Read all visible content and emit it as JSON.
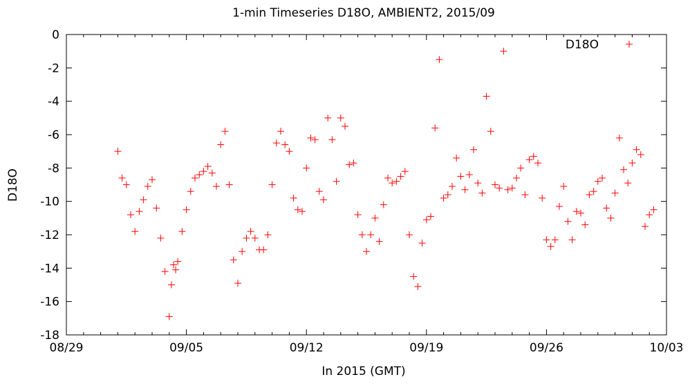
{
  "chart_data": {
    "type": "scatter",
    "title": "1-min Timeseries D18O, AMBIENT2, 2015/09",
    "xlabel": "In 2015 (GMT)",
    "ylabel": "D18O",
    "x_unit": "days",
    "xlim": [
      "2015-08-29",
      "2015-10-03"
    ],
    "ylim": [
      -18,
      0
    ],
    "x_ticks": [
      "08/29",
      "09/05",
      "09/12",
      "09/19",
      "09/26",
      "10/03"
    ],
    "y_ticks": [
      "0",
      "-2",
      "-4",
      "-6",
      "-8",
      "-10",
      "-12",
      "-14",
      "-16",
      "-18"
    ],
    "grid": false,
    "legend_position": "top-right",
    "marker": "plus",
    "series": [
      {
        "name": "D18O",
        "color": "#ff0000",
        "x": [
          "2015-09-01 00:00",
          "2015-09-01 06:00",
          "2015-09-01 12:00",
          "2015-09-01 18:00",
          "2015-09-02 00:00",
          "2015-09-02 06:00",
          "2015-09-02 12:00",
          "2015-09-02 18:00",
          "2015-09-03 00:00",
          "2015-09-03 06:00",
          "2015-09-03 12:00",
          "2015-09-03 18:00",
          "2015-09-04 00:00",
          "2015-09-04 03:00",
          "2015-09-04 06:00",
          "2015-09-04 09:00",
          "2015-09-04 12:00",
          "2015-09-04 18:00",
          "2015-09-05 00:00",
          "2015-09-05 06:00",
          "2015-09-05 12:00",
          "2015-09-05 18:00",
          "2015-09-06 00:00",
          "2015-09-06 06:00",
          "2015-09-06 12:00",
          "2015-09-06 18:00",
          "2015-09-07 00:00",
          "2015-09-07 06:00",
          "2015-09-07 12:00",
          "2015-09-07 18:00",
          "2015-09-08 00:00",
          "2015-09-08 06:00",
          "2015-09-08 12:00",
          "2015-09-08 18:00",
          "2015-09-09 00:00",
          "2015-09-09 06:00",
          "2015-09-09 12:00",
          "2015-09-09 18:00",
          "2015-09-10 00:00",
          "2015-09-10 06:00",
          "2015-09-10 12:00",
          "2015-09-10 18:00",
          "2015-09-11 00:00",
          "2015-09-11 06:00",
          "2015-09-11 12:00",
          "2015-09-11 18:00",
          "2015-09-12 00:00",
          "2015-09-12 06:00",
          "2015-09-12 12:00",
          "2015-09-12 18:00",
          "2015-09-13 00:00",
          "2015-09-13 06:00",
          "2015-09-13 12:00",
          "2015-09-13 18:00",
          "2015-09-14 00:00",
          "2015-09-14 06:00",
          "2015-09-14 12:00",
          "2015-09-14 18:00",
          "2015-09-15 00:00",
          "2015-09-15 06:00",
          "2015-09-15 12:00",
          "2015-09-15 18:00",
          "2015-09-16 00:00",
          "2015-09-16 06:00",
          "2015-09-16 12:00",
          "2015-09-16 18:00",
          "2015-09-17 00:00",
          "2015-09-17 06:00",
          "2015-09-17 12:00",
          "2015-09-17 18:00",
          "2015-09-18 00:00",
          "2015-09-18 06:00",
          "2015-09-18 12:00",
          "2015-09-18 18:00",
          "2015-09-19 00:00",
          "2015-09-19 06:00",
          "2015-09-19 12:00",
          "2015-09-19 18:00",
          "2015-09-20 00:00",
          "2015-09-20 06:00",
          "2015-09-20 12:00",
          "2015-09-20 18:00",
          "2015-09-21 00:00",
          "2015-09-21 06:00",
          "2015-09-21 12:00",
          "2015-09-21 18:00",
          "2015-09-22 00:00",
          "2015-09-22 06:00",
          "2015-09-22 12:00",
          "2015-09-22 18:00",
          "2015-09-23 00:00",
          "2015-09-23 06:00",
          "2015-09-23 12:00",
          "2015-09-23 18:00",
          "2015-09-24 00:00",
          "2015-09-24 06:00",
          "2015-09-24 12:00",
          "2015-09-24 18:00",
          "2015-09-25 00:00",
          "2015-09-25 06:00",
          "2015-09-25 12:00",
          "2015-09-25 18:00",
          "2015-09-26 00:00",
          "2015-09-26 06:00",
          "2015-09-26 12:00",
          "2015-09-26 18:00",
          "2015-09-27 00:00",
          "2015-09-27 06:00",
          "2015-09-27 12:00",
          "2015-09-27 18:00",
          "2015-09-28 00:00",
          "2015-09-28 06:00",
          "2015-09-28 12:00",
          "2015-09-28 18:00",
          "2015-09-29 00:00",
          "2015-09-29 06:00",
          "2015-09-29 12:00",
          "2015-09-29 18:00",
          "2015-09-30 00:00",
          "2015-09-30 06:00",
          "2015-09-30 12:00",
          "2015-09-30 18:00",
          "2015-10-01 00:00",
          "2015-10-01 06:00",
          "2015-10-01 12:00",
          "2015-10-01 18:00",
          "2015-10-02 00:00",
          "2015-10-02 06:00"
        ],
        "y": [
          -7.0,
          -8.6,
          -9.0,
          -10.8,
          -11.8,
          -10.6,
          -9.9,
          -9.1,
          -8.7,
          -10.4,
          -12.2,
          -14.2,
          -16.9,
          -15.0,
          -13.8,
          -14.1,
          -13.6,
          -11.8,
          -10.5,
          -9.4,
          -8.6,
          -8.4,
          -8.2,
          -7.9,
          -8.3,
          -9.1,
          -6.6,
          -5.8,
          -9.0,
          -13.5,
          -14.9,
          -13.0,
          -12.2,
          -11.8,
          -12.2,
          -12.9,
          -12.9,
          -12.0,
          -9.0,
          -6.5,
          -5.8,
          -6.6,
          -7.0,
          -9.8,
          -10.5,
          -10.6,
          -8.0,
          -6.2,
          -6.3,
          -9.4,
          -9.9,
          -5.0,
          -6.3,
          -8.8,
          -5.0,
          -5.5,
          -7.8,
          -7.7,
          -10.8,
          -12.0,
          -13.0,
          -12.0,
          -11.0,
          -12.4,
          -10.2,
          -8.6,
          -8.9,
          -8.8,
          -8.5,
          -8.2,
          -12.0,
          -14.5,
          -15.1,
          -12.5,
          -11.1,
          -10.9,
          -5.6,
          -1.5,
          -9.8,
          -9.6,
          -9.1,
          -7.4,
          -8.5,
          -9.3,
          -8.4,
          -6.9,
          -8.9,
          -9.5,
          -3.7,
          -5.8,
          -9.0,
          -9.2,
          -1.0,
          -9.3,
          -9.2,
          -8.6,
          -8.0,
          -9.6,
          -7.5,
          -7.3,
          -7.7,
          -9.8,
          -12.3,
          -12.7,
          -12.3,
          -10.3,
          -9.1,
          -11.2,
          -12.3,
          -10.6,
          -10.7,
          -11.4,
          -9.6,
          -9.4,
          -8.8,
          -8.6,
          -10.4,
          -11.0,
          -9.5,
          -6.2,
          -8.1,
          -8.9,
          -7.7,
          -6.9,
          -7.2,
          -11.5,
          -10.8,
          -10.5
        ]
      }
    ]
  }
}
